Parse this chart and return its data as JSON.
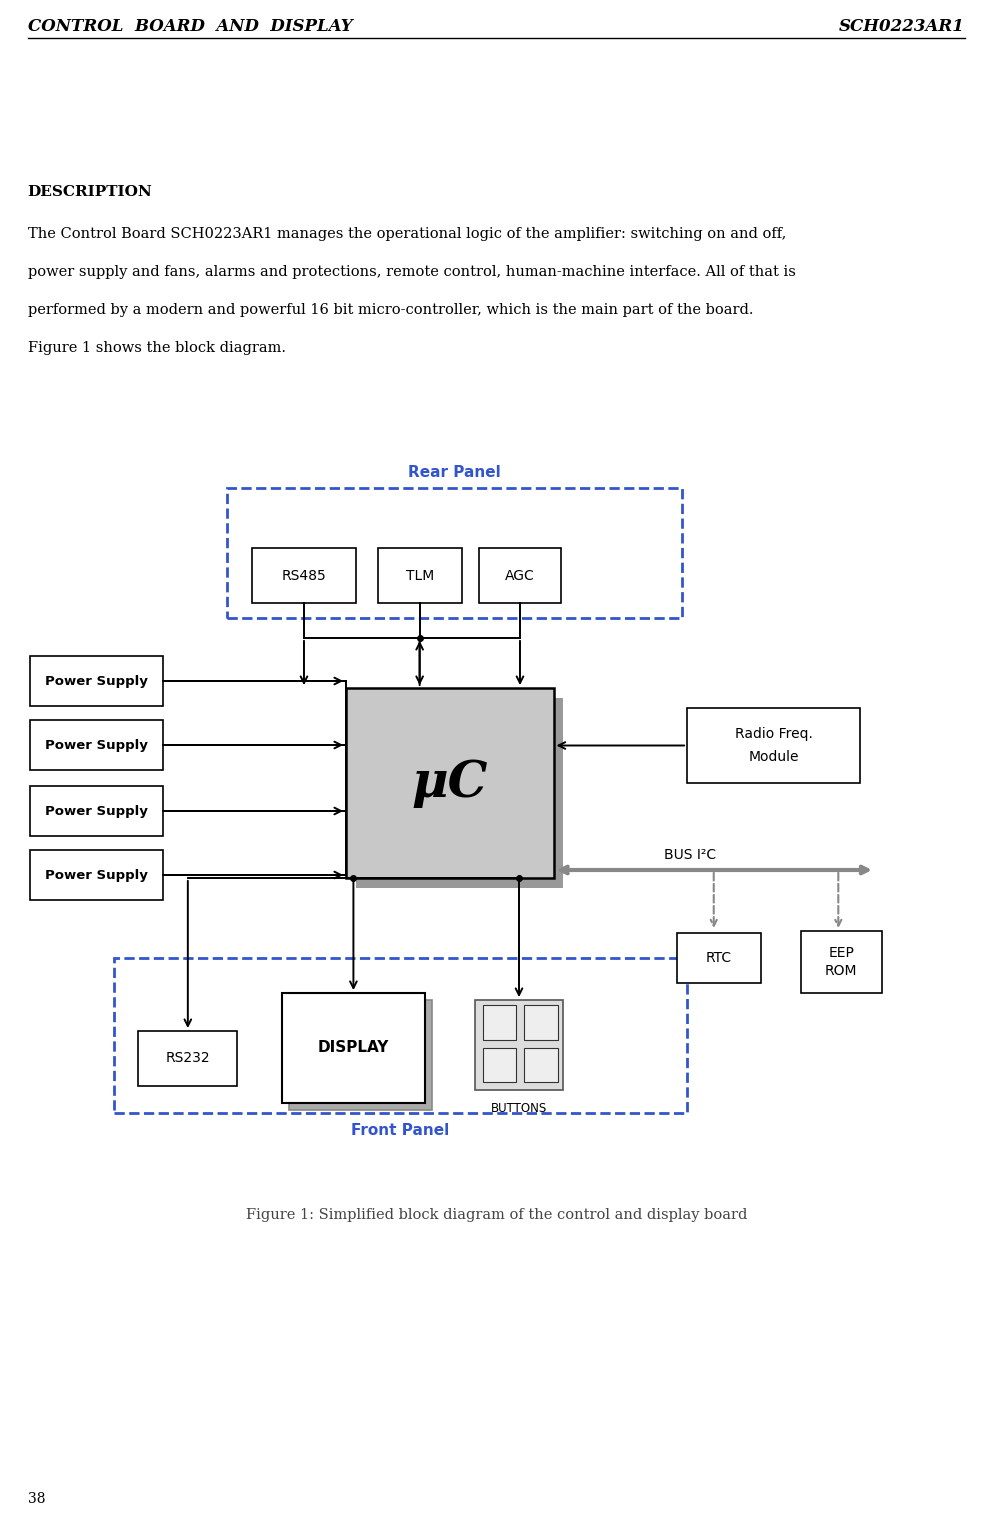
{
  "page_width": 10.04,
  "page_height": 15.28,
  "bg_color": "#ffffff",
  "header_left": "CONTROL  BOARD  AND  DISPLAY",
  "header_right": "SCH0223AR1",
  "header_font_size": 13,
  "footer_page_num": "38",
  "section_title": "DESCRIPTION",
  "body_text_line1": "The Control Board SCH0223AR1 manages the operational logic of the amplifier: switching on and off,",
  "body_text_line2": "power supply and fans, alarms and protections, remote control, human-machine interface. All of that is",
  "body_text_line3": "performed by a modern and powerful 16 bit micro-controller, which is the main part of the board.",
  "body_text_line4": "Figure 1 shows the block diagram.",
  "figure_caption": "Figure 1: Simplified block diagram of the control and display board",
  "blue_color": "#3355cc",
  "dashed_blue": "#3355cc",
  "box_edge": "#000000",
  "mu_c_fill": "#c8c8c8"
}
